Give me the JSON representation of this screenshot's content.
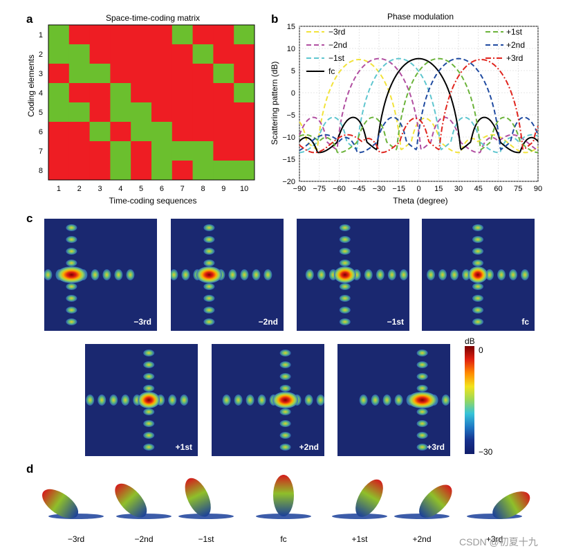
{
  "panels": {
    "a": "a",
    "b": "b",
    "c": "c",
    "d": "d"
  },
  "panel_a": {
    "title": "Space-time-coding matrix",
    "ylabel": "Coding elements",
    "xlabel": "Time-coding sequences",
    "rows": [
      "1",
      "2",
      "3",
      "4",
      "5",
      "6",
      "7",
      "8"
    ],
    "cols": [
      "1",
      "2",
      "3",
      "4",
      "5",
      "6",
      "7",
      "8",
      "9",
      "10"
    ],
    "colors": {
      "one": "#6bbf2e",
      "zero": "#ee1d23"
    },
    "matrix": [
      [
        1,
        0,
        0,
        0,
        0,
        0,
        1,
        0,
        0,
        1
      ],
      [
        1,
        1,
        0,
        0,
        0,
        0,
        0,
        1,
        0,
        0
      ],
      [
        0,
        1,
        1,
        0,
        0,
        0,
        0,
        0,
        1,
        0
      ],
      [
        1,
        0,
        0,
        1,
        0,
        0,
        0,
        0,
        0,
        1
      ],
      [
        1,
        1,
        0,
        1,
        1,
        0,
        0,
        0,
        0,
        0
      ],
      [
        0,
        0,
        1,
        0,
        1,
        1,
        0,
        0,
        0,
        0
      ],
      [
        0,
        0,
        0,
        1,
        0,
        1,
        1,
        1,
        0,
        0
      ],
      [
        0,
        0,
        0,
        1,
        0,
        1,
        0,
        1,
        1,
        1
      ]
    ]
  },
  "chart_data": {
    "type": "line",
    "title": "Phase modulation",
    "xlabel": "Theta (degree)",
    "ylabel": "Scattering pattern (dB)",
    "xlim": [
      -90,
      90
    ],
    "ylim": [
      -20,
      15
    ],
    "xticks": [
      "−90",
      "−75",
      "−60",
      "−45",
      "−30",
      "−15",
      "0",
      "15",
      "30",
      "45",
      "60",
      "75",
      "90"
    ],
    "yticks": [
      "15",
      "10",
      "5",
      "0",
      "−5",
      "−10",
      "−15",
      "−20"
    ],
    "legend_left": [
      "−3rd",
      "−2nd",
      "−1st",
      "fc"
    ],
    "legend_right": [
      "+1st",
      "+2nd",
      "+3rd"
    ],
    "series": [
      {
        "name": "−3rd",
        "color": "#f2e33a",
        "dash": "dash",
        "peak": -45,
        "peakval": 7.5
      },
      {
        "name": "−2nd",
        "color": "#b14fa1",
        "dash": "dash",
        "peak": -30,
        "peakval": 7.7
      },
      {
        "name": "−1st",
        "color": "#5fc6cf",
        "dash": "dash",
        "peak": -15,
        "peakval": 7.7
      },
      {
        "name": "fc",
        "color": "#000000",
        "dash": "solid",
        "peak": 0,
        "peakval": 7.7
      },
      {
        "name": "+1st",
        "color": "#6bb33a",
        "dash": "dash",
        "peak": 15,
        "peakval": 7.7
      },
      {
        "name": "+2nd",
        "color": "#1f4aa0",
        "dash": "dash",
        "peak": 30,
        "peakval": 7.7
      },
      {
        "name": "+3rd",
        "color": "#e0241d",
        "dash": "dashdot",
        "peak": 47,
        "peakval": 7.5
      }
    ]
  },
  "panel_c": {
    "items": [
      {
        "label": "−3rd",
        "shift": -2.6
      },
      {
        "label": "−2nd",
        "shift": -1.6
      },
      {
        "label": "−1st",
        "shift": -0.7
      },
      {
        "label": "fc",
        "shift": 0
      },
      {
        "label": "+1st",
        "shift": 0.7
      },
      {
        "label": "+2nd",
        "shift": 1.6
      },
      {
        "label": "+3rd",
        "shift": 2.6
      }
    ],
    "colorbar": {
      "unit": "dB",
      "max": "0",
      "min": "−30"
    }
  },
  "panel_d": {
    "labels": [
      "−3rd",
      "−2nd",
      "−1st",
      "fc",
      "+1st",
      "+2nd",
      "+3rd"
    ]
  },
  "watermark": "CSDN @初夏十九"
}
